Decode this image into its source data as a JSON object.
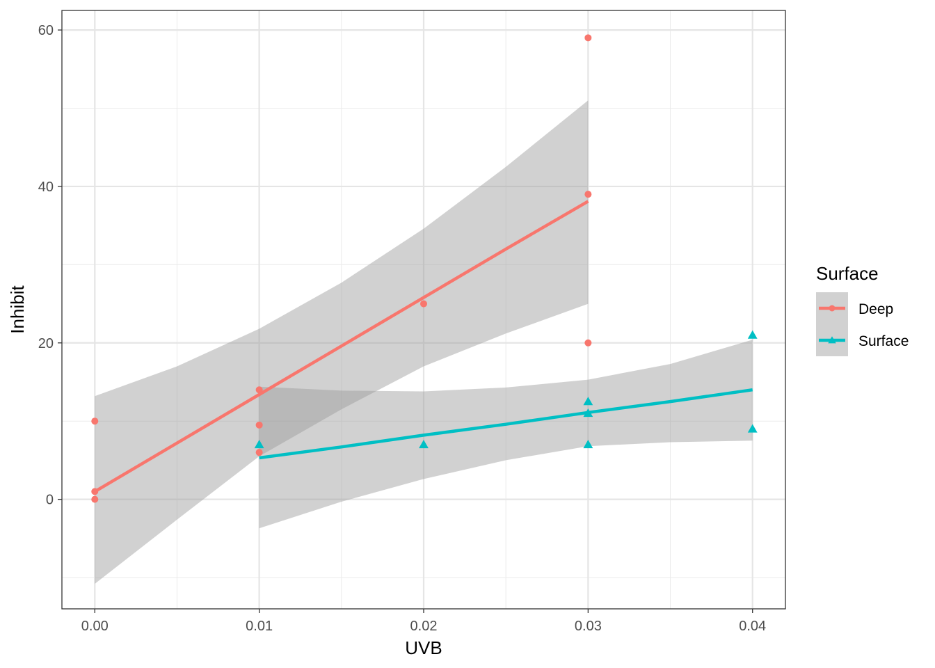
{
  "chart_data": {
    "type": "scatter",
    "title": "",
    "xlabel": "UVB",
    "ylabel": "Inhibit",
    "xlim": [
      -0.002,
      0.042
    ],
    "ylim": [
      -14,
      62.5
    ],
    "x_ticks": [
      0.0,
      0.01,
      0.02,
      0.03,
      0.04
    ],
    "x_tick_labels": [
      "0.00",
      "0.01",
      "0.02",
      "0.03",
      "0.04"
    ],
    "x_minor": [
      0.005,
      0.015,
      0.025,
      0.035
    ],
    "y_ticks": [
      0,
      20,
      40,
      60
    ],
    "y_tick_labels": [
      "0",
      "20",
      "40",
      "60"
    ],
    "y_minor": [
      -10,
      10,
      30,
      50
    ],
    "grid": true,
    "legend": {
      "title": "Surface",
      "position": "right",
      "entries": [
        "Deep",
        "Surface"
      ]
    },
    "series": [
      {
        "name": "Deep",
        "color": "#F8766D",
        "marker": "circle",
        "points": [
          [
            0.0,
            10
          ],
          [
            0.0,
            1
          ],
          [
            0.0,
            0
          ],
          [
            0.01,
            14
          ],
          [
            0.01,
            9.5
          ],
          [
            0.01,
            6
          ],
          [
            0.02,
            25
          ],
          [
            0.03,
            59
          ],
          [
            0.03,
            39
          ],
          [
            0.03,
            20
          ]
        ],
        "fit": {
          "x": [
            0.0,
            0.005,
            0.01,
            0.015,
            0.02,
            0.025,
            0.03
          ],
          "y": [
            1.0,
            7.2,
            13.4,
            19.6,
            25.8,
            32.0,
            38.1
          ],
          "lower": [
            -10.8,
            -2.6,
            5.5,
            11.5,
            17.0,
            21.2,
            25.0
          ],
          "upper": [
            13.2,
            17.0,
            21.8,
            27.7,
            34.6,
            42.5,
            51.0
          ]
        }
      },
      {
        "name": "Surface",
        "color": "#00BFC4",
        "marker": "triangle",
        "points": [
          [
            0.01,
            7
          ],
          [
            0.02,
            7
          ],
          [
            0.03,
            12.5
          ],
          [
            0.03,
            11
          ],
          [
            0.03,
            7
          ],
          [
            0.04,
            21
          ],
          [
            0.04,
            9
          ]
        ],
        "fit": {
          "x": [
            0.01,
            0.015,
            0.02,
            0.025,
            0.03,
            0.035,
            0.04
          ],
          "y": [
            5.3,
            6.7,
            8.2,
            9.6,
            11.1,
            12.5,
            14.0
          ],
          "lower": [
            -3.7,
            -0.3,
            2.6,
            5.0,
            6.8,
            7.3,
            7.5
          ],
          "upper": [
            14.4,
            13.9,
            13.8,
            14.3,
            15.3,
            17.3,
            20.4
          ]
        }
      }
    ]
  }
}
